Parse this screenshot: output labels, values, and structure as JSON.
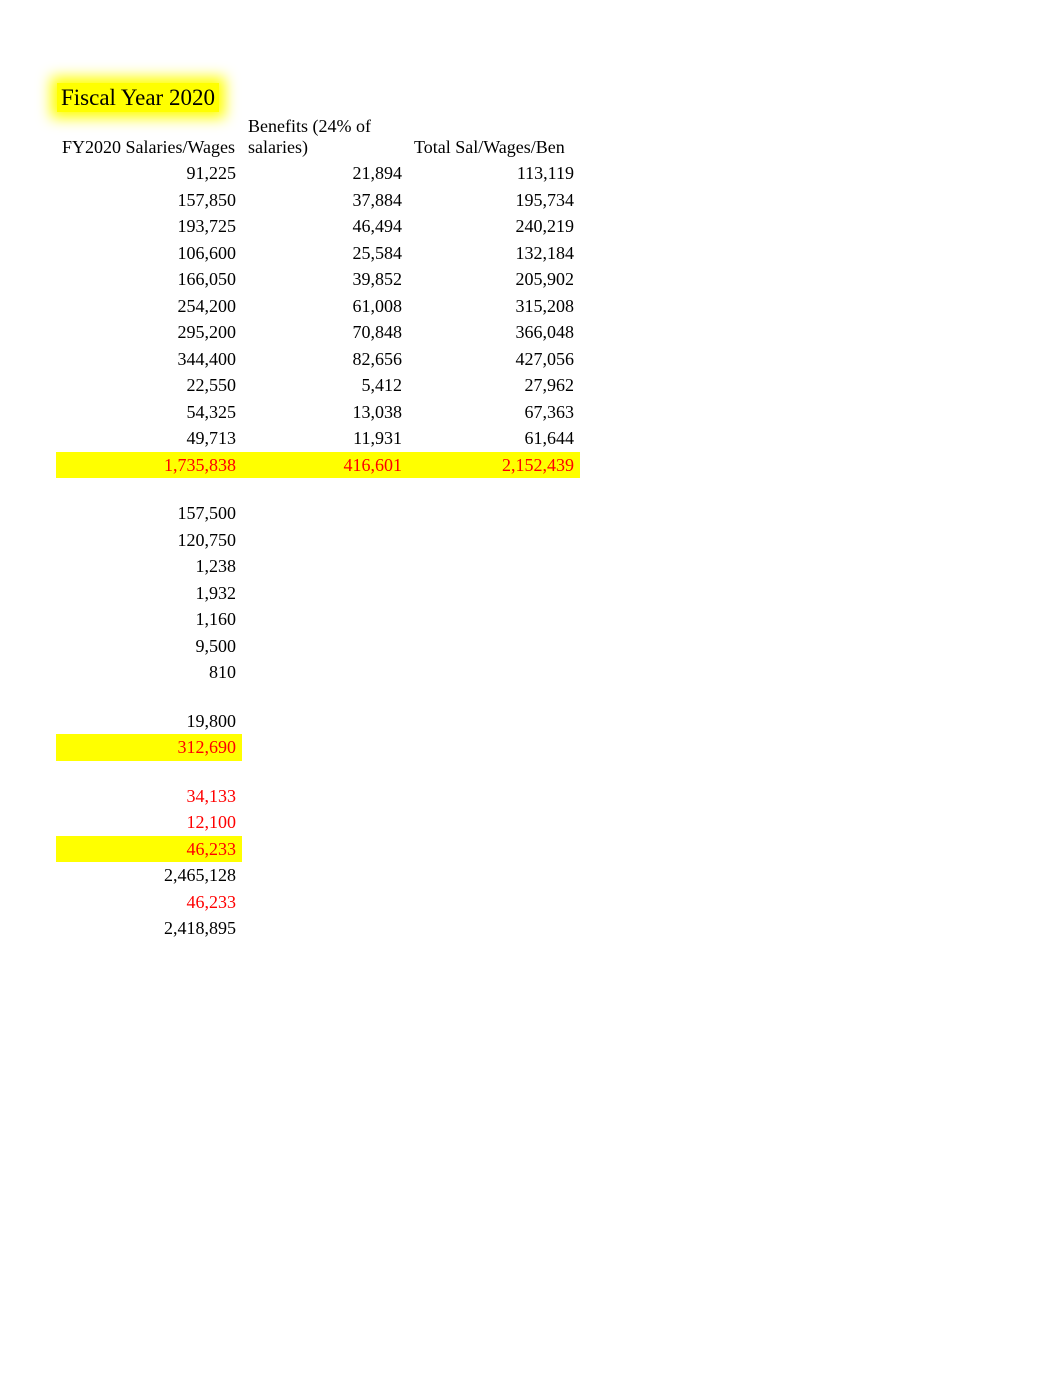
{
  "title": "Fiscal Year 2020",
  "columns": {
    "c1": "FY2020 Salaries/Wages",
    "c2": "Benefits (24% of salaries)",
    "c3": "Total Sal/Wages/Ben"
  },
  "salaryRows": [
    {
      "c1": "91,225",
      "c2": "21,894",
      "c3": "113,119"
    },
    {
      "c1": "157,850",
      "c2": "37,884",
      "c3": "195,734"
    },
    {
      "c1": "193,725",
      "c2": "46,494",
      "c3": "240,219"
    },
    {
      "c1": "106,600",
      "c2": "25,584",
      "c3": "132,184"
    },
    {
      "c1": "166,050",
      "c2": "39,852",
      "c3": "205,902"
    },
    {
      "c1": "254,200",
      "c2": "61,008",
      "c3": "315,208"
    },
    {
      "c1": "295,200",
      "c2": "70,848",
      "c3": "366,048"
    },
    {
      "c1": "344,400",
      "c2": "82,656",
      "c3": "427,056"
    },
    {
      "c1": "22,550",
      "c2": "5,412",
      "c3": "27,962"
    },
    {
      "c1": "54,325",
      "c2": "13,038",
      "c3": "67,363"
    },
    {
      "c1": "49,713",
      "c2": "11,931",
      "c3": "61,644"
    }
  ],
  "salaryTotal": {
    "c1": "1,735,838",
    "c2": "416,601",
    "c3": "2,152,439"
  },
  "block2": [
    "157,500",
    "120,750",
    "1,238",
    "1,932",
    "1,160",
    "9,500",
    "810"
  ],
  "block2b": "19,800",
  "block2Total": "312,690",
  "block3": [
    "34,133",
    "12,100"
  ],
  "block3Total": "46,233",
  "block4": [
    {
      "v": "2,465,128",
      "red": false
    },
    {
      "v": "46,233",
      "red": true
    },
    {
      "v": "2,418,895",
      "red": false
    }
  ],
  "colors": {
    "highlight": "#ffff00",
    "redText": "#ff0000",
    "text": "#000000",
    "background": "#ffffff"
  },
  "font": {
    "family": "Times New Roman",
    "titleSize": 23,
    "bodySize": 18
  }
}
